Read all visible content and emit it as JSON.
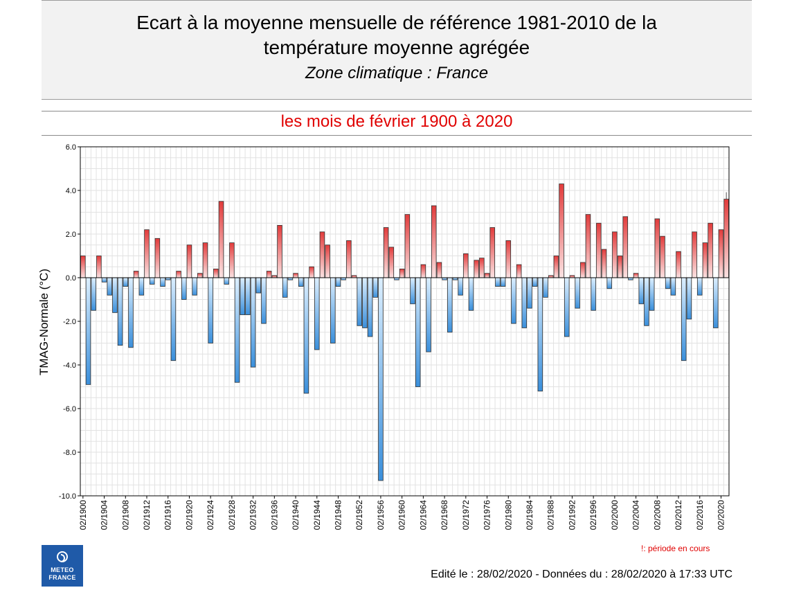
{
  "header": {
    "title_line1": "Ecart à la moyenne mensuelle de référence 1981-2010 de la",
    "title_line2": "température moyenne  agrégée",
    "zone": "Zone climatique : France"
  },
  "subtitle": "les mois de février 1900 à 2020",
  "colors": {
    "positive_bar": "#e23b3b",
    "negative_bar": "#3a8fdb",
    "subtitle": "#e00000",
    "logo_bg": "#1f5aa8"
  },
  "chart_data": {
    "type": "bar",
    "ylabel": "TMAG-Normale (°C)",
    "ylim": [
      -10,
      6
    ],
    "yticks": [
      "6.0",
      "4.0",
      "2.0",
      "0.0",
      "-2.0",
      "-4.0",
      "-6.0",
      "-8.0",
      "-10.0"
    ],
    "grid": true,
    "xticks": [
      "02/1900",
      "02/1904",
      "02/1908",
      "02/1912",
      "02/1916",
      "02/1920",
      "02/1924",
      "02/1928",
      "02/1932",
      "02/1936",
      "02/1940",
      "02/1944",
      "02/1948",
      "02/1952",
      "02/1956",
      "02/1960",
      "02/1964",
      "02/1968",
      "02/1972",
      "02/1976",
      "02/1980",
      "02/1984",
      "02/1988",
      "02/1992",
      "02/1996",
      "02/2000",
      "02/2004",
      "02/2008",
      "02/2012",
      "02/2016",
      "02/2020"
    ],
    "first_year": 1900,
    "last_year": 2020,
    "values": [
      1.0,
      -4.9,
      -1.5,
      1.0,
      -0.2,
      -0.8,
      -1.6,
      -3.1,
      -0.4,
      -3.2,
      0.3,
      -0.8,
      2.2,
      -0.3,
      1.8,
      -0.4,
      -0.1,
      -3.8,
      0.3,
      -1.0,
      1.5,
      -0.8,
      0.2,
      1.6,
      -3.0,
      0.4,
      3.5,
      -0.3,
      1.6,
      -4.8,
      -1.7,
      -1.7,
      -4.1,
      -0.7,
      -2.1,
      0.3,
      0.1,
      2.4,
      -0.9,
      -0.1,
      0.2,
      -0.4,
      -5.3,
      0.5,
      -3.3,
      2.1,
      1.5,
      -3.0,
      -0.4,
      -0.1,
      1.7,
      0.1,
      -2.2,
      -2.3,
      -2.7,
      -0.9,
      -9.3,
      2.3,
      1.4,
      -0.1,
      0.4,
      2.9,
      -1.2,
      -5.0,
      0.6,
      -3.4,
      3.3,
      0.7,
      -0.1,
      -2.5,
      -0.1,
      -0.8,
      1.1,
      -1.5,
      0.8,
      0.9,
      0.2,
      2.3,
      -0.4,
      -0.4,
      1.7,
      -2.1,
      0.6,
      -2.3,
      -1.4,
      -0.4,
      -5.2,
      -0.9,
      0.1,
      1.0,
      4.3,
      -2.7,
      0.1,
      -1.4,
      0.7,
      2.9,
      -1.5,
      2.5,
      1.3,
      -0.5,
      2.1,
      1.0,
      2.8,
      -0.1,
      0.2,
      -1.2,
      -2.2,
      -1.5,
      2.7,
      1.9,
      -0.5,
      -0.8,
      1.2,
      -3.8,
      -1.9,
      2.1,
      -0.8,
      1.6,
      2.5,
      -2.3,
      2.2,
      3.6
    ],
    "current_period_last": true
  },
  "footer": {
    "logo_line1": "METEO",
    "logo_line2": "FRANCE",
    "logo_icon": "meteo-france-emblem",
    "period_note": "!: période en cours",
    "edit_note": "Edité le : 28/02/2020 - Données du : 28/02/2020 à 17:33 UTC"
  }
}
